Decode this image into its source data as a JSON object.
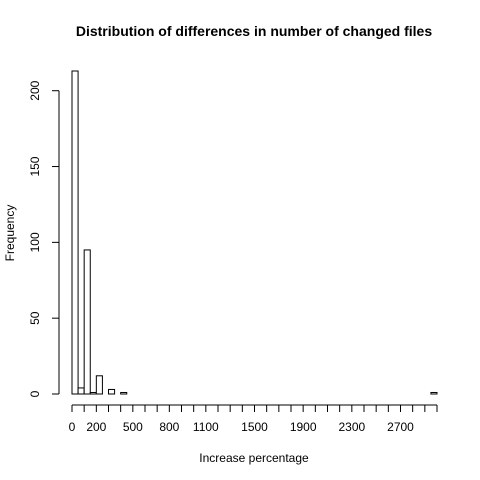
{
  "chart_data": {
    "type": "bar",
    "title": "Distribution of differences in number of changed files",
    "xlabel": "Increase percentage",
    "ylabel": "Frequency",
    "xlim": [
      0,
      3000
    ],
    "ylim": [
      0,
      213
    ],
    "bin_width": 50,
    "x_ticks": [
      0,
      200,
      500,
      800,
      1100,
      1500,
      1900,
      2300,
      2700
    ],
    "x_tick_mark_every": 100,
    "y_ticks": [
      0,
      50,
      100,
      150,
      200
    ],
    "bins": [
      {
        "start": 0,
        "end": 50,
        "count": 213
      },
      {
        "start": 50,
        "end": 100,
        "count": 4
      },
      {
        "start": 100,
        "end": 150,
        "count": 95
      },
      {
        "start": 150,
        "end": 200,
        "count": 1
      },
      {
        "start": 200,
        "end": 250,
        "count": 12
      },
      {
        "start": 250,
        "end": 300,
        "count": 0
      },
      {
        "start": 300,
        "end": 350,
        "count": 3
      },
      {
        "start": 350,
        "end": 400,
        "count": 0
      },
      {
        "start": 400,
        "end": 450,
        "count": 1
      },
      {
        "start": 2950,
        "end": 3000,
        "count": 1
      }
    ]
  }
}
